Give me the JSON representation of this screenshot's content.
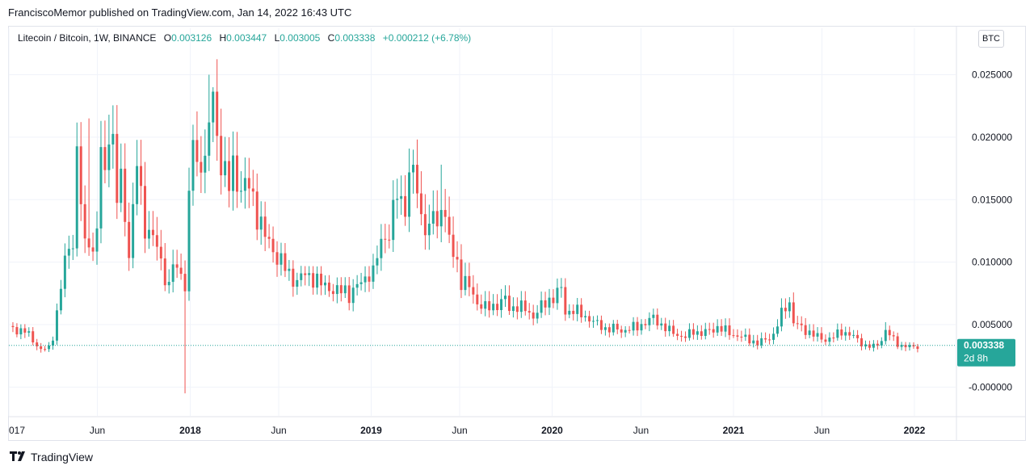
{
  "header": {
    "published": "FranciscoMemor published on TradingView.com, Jan 14, 2022 16:43 UTC"
  },
  "legend": {
    "symbol": "Litecoin / Bitcoin, 1W, BINANCE",
    "open_label": "O",
    "open": "0.003126",
    "high_label": "H",
    "high": "0.003447",
    "low_label": "L",
    "low": "0.003005",
    "close_label": "C",
    "close": "0.003338",
    "change": "+0.000212 (+6.78%)"
  },
  "unit_button": "BTC",
  "last_price": {
    "value": "0.003338",
    "countdown": "2d 8h"
  },
  "footer": {
    "brand": "TradingView",
    "logo_icon": "tradingview-logo-icon"
  },
  "colors": {
    "up": "#26a69a",
    "down": "#ef5350",
    "grid": "#f0f3fa",
    "text": "#131722"
  },
  "chart_data": {
    "type": "candlestick",
    "title": "Litecoin / Bitcoin, 1W, BINANCE",
    "y_ticks": [
      "0.025000",
      "0.020000",
      "0.015000",
      "0.010000",
      "0.005000",
      "-0.000000"
    ],
    "y_tick_values": [
      0.025,
      0.02,
      0.015,
      0.01,
      0.005,
      0.0
    ],
    "ylim": [
      -0.0023,
      0.0271
    ],
    "x_ticks": [
      {
        "label": "017",
        "t": 0.0,
        "bold": false
      },
      {
        "label": "Jun",
        "t": 22.1,
        "bold": false
      },
      {
        "label": "2018",
        "t": 45.3,
        "bold": true
      },
      {
        "label": "Jun",
        "t": 67.4,
        "bold": false
      },
      {
        "label": "2019",
        "t": 90.5,
        "bold": true
      },
      {
        "label": "Jun",
        "t": 112.6,
        "bold": false
      },
      {
        "label": "2020",
        "t": 135.7,
        "bold": true
      },
      {
        "label": "Jun",
        "t": 157.9,
        "bold": false
      },
      {
        "label": "2021",
        "t": 181.0,
        "bold": true
      },
      {
        "label": "Jun",
        "t": 203.1,
        "bold": false
      },
      {
        "label": "2022",
        "t": 226.2,
        "bold": true
      }
    ],
    "price_line": 0.003338,
    "anchors": [
      [
        0,
        0.0047
      ],
      [
        4,
        0.0045
      ],
      [
        8,
        0.003
      ],
      [
        10,
        0.0031
      ],
      [
        11,
        0.0041
      ],
      [
        12,
        0.006
      ],
      [
        13,
        0.008
      ],
      [
        14,
        0.01
      ],
      [
        15,
        0.011
      ],
      [
        16,
        0.012
      ],
      [
        17,
        0.0185
      ],
      [
        18,
        0.015
      ],
      [
        19,
        0.011
      ],
      [
        20,
        0.012
      ],
      [
        21,
        0.011
      ],
      [
        22,
        0.0125
      ],
      [
        23,
        0.019
      ],
      [
        24,
        0.0165
      ],
      [
        25,
        0.0215
      ],
      [
        26,
        0.0195
      ],
      [
        27,
        0.015
      ],
      [
        28,
        0.0165
      ],
      [
        29,
        0.0135
      ],
      [
        30,
        0.011
      ],
      [
        31,
        0.014
      ],
      [
        32,
        0.018
      ],
      [
        33,
        0.015
      ],
      [
        34,
        0.013
      ],
      [
        36,
        0.012
      ],
      [
        38,
        0.01
      ],
      [
        40,
        0.008
      ],
      [
        41,
        0.01
      ],
      [
        42,
        0.009
      ],
      [
        43,
        0.0095
      ],
      [
        44,
        0.008
      ],
      [
        45,
        0.015
      ],
      [
        46,
        0.02
      ],
      [
        47,
        0.017
      ],
      [
        48,
        0.019
      ],
      [
        49,
        0.018
      ],
      [
        50,
        0.021
      ],
      [
        51,
        0.023
      ],
      [
        52,
        0.02
      ],
      [
        53,
        0.0185
      ],
      [
        54,
        0.017
      ],
      [
        55,
        0.016
      ],
      [
        56,
        0.0175
      ],
      [
        58,
        0.016
      ],
      [
        60,
        0.016
      ],
      [
        62,
        0.014
      ],
      [
        64,
        0.012
      ],
      [
        66,
        0.011
      ],
      [
        68,
        0.01
      ],
      [
        70,
        0.009
      ],
      [
        72,
        0.0085
      ],
      [
        74,
        0.009
      ],
      [
        76,
        0.0088
      ],
      [
        78,
        0.0082
      ],
      [
        80,
        0.008
      ],
      [
        82,
        0.0076
      ],
      [
        84,
        0.0078
      ],
      [
        85,
        0.0074
      ],
      [
        87,
        0.008
      ],
      [
        89,
        0.0088
      ],
      [
        90,
        0.0092
      ],
      [
        91,
        0.009
      ],
      [
        92,
        0.0105
      ],
      [
        94,
        0.0125
      ],
      [
        95,
        0.012
      ],
      [
        96,
        0.014
      ],
      [
        97,
        0.0155
      ],
      [
        98,
        0.0148
      ],
      [
        99,
        0.015
      ],
      [
        101,
        0.0175
      ],
      [
        102,
        0.0155
      ],
      [
        103,
        0.014
      ],
      [
        104,
        0.013
      ],
      [
        105,
        0.012
      ],
      [
        106,
        0.0145
      ],
      [
        107,
        0.0125
      ],
      [
        108,
        0.0152
      ],
      [
        109,
        0.0135
      ],
      [
        110,
        0.0115
      ],
      [
        112,
        0.01
      ],
      [
        113,
        0.0085
      ],
      [
        115,
        0.008
      ],
      [
        117,
        0.0068
      ],
      [
        119,
        0.0063
      ],
      [
        121,
        0.0065
      ],
      [
        123,
        0.0068
      ],
      [
        124,
        0.007
      ],
      [
        125,
        0.0063
      ],
      [
        127,
        0.0065
      ],
      [
        129,
        0.0062
      ],
      [
        131,
        0.0057
      ],
      [
        133,
        0.0064
      ],
      [
        135,
        0.007
      ],
      [
        137,
        0.0075
      ],
      [
        138,
        0.0078
      ],
      [
        139,
        0.006
      ],
      [
        141,
        0.0062
      ],
      [
        143,
        0.0058
      ],
      [
        145,
        0.0055
      ],
      [
        147,
        0.005
      ],
      [
        149,
        0.0047
      ],
      [
        151,
        0.0047
      ],
      [
        153,
        0.0045
      ],
      [
        155,
        0.0047
      ],
      [
        157,
        0.0048
      ],
      [
        159,
        0.0052
      ],
      [
        161,
        0.0055
      ],
      [
        163,
        0.005
      ],
      [
        165,
        0.0045
      ],
      [
        167,
        0.0042
      ],
      [
        169,
        0.004
      ],
      [
        171,
        0.0045
      ],
      [
        173,
        0.0043
      ],
      [
        175,
        0.0045
      ],
      [
        177,
        0.0048
      ],
      [
        179,
        0.0045
      ],
      [
        181,
        0.0042
      ],
      [
        183,
        0.004
      ],
      [
        185,
        0.0038
      ],
      [
        187,
        0.0035
      ],
      [
        189,
        0.0038
      ],
      [
        191,
        0.0042
      ],
      [
        192,
        0.005
      ],
      [
        193,
        0.0058
      ],
      [
        194,
        0.0065
      ],
      [
        195,
        0.0068
      ],
      [
        196,
        0.0052
      ],
      [
        198,
        0.0047
      ],
      [
        200,
        0.0044
      ],
      [
        202,
        0.004
      ],
      [
        204,
        0.0038
      ],
      [
        206,
        0.004
      ],
      [
        208,
        0.0045
      ],
      [
        210,
        0.0042
      ],
      [
        212,
        0.0038
      ],
      [
        214,
        0.0033
      ],
      [
        216,
        0.0032
      ],
      [
        218,
        0.0038
      ],
      [
        219,
        0.0045
      ],
      [
        221,
        0.0038
      ],
      [
        223,
        0.0033
      ],
      [
        225,
        0.0032
      ],
      [
        227,
        0.0033
      ]
    ],
    "spikes": [
      {
        "t": 20,
        "high": 0.0215,
        "low": 0.0105
      },
      {
        "t": 25,
        "high": 0.0218
      },
      {
        "t": 44,
        "low": -0.0005
      },
      {
        "t": 46,
        "high": 0.021
      },
      {
        "t": 50,
        "high": 0.025
      },
      {
        "t": 51,
        "high": 0.024
      },
      {
        "t": 101,
        "high": 0.019
      },
      {
        "t": 108,
        "high": 0.0178
      },
      {
        "t": 195,
        "high": 0.0072
      },
      {
        "t": 219,
        "high": 0.0052
      }
    ]
  }
}
